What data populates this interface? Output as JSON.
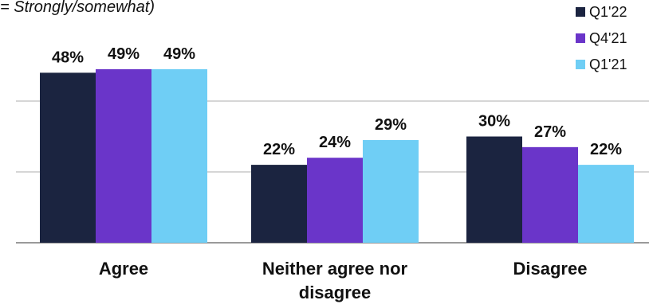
{
  "note": "= Strongly/somewhat)",
  "chart_data": {
    "type": "bar",
    "categories": [
      "Agree",
      "Neither agree nor disagree",
      "Disagree"
    ],
    "category_lines": [
      [
        "Agree"
      ],
      [
        "Neither agree nor",
        "disagree"
      ],
      [
        "Disagree"
      ]
    ],
    "series": [
      {
        "name": "Q1'22",
        "values": [
          48,
          22,
          30
        ],
        "value_labels": [
          "48%",
          "22%",
          "30%"
        ],
        "color": "#1b2440"
      },
      {
        "name": "Q4'21",
        "values": [
          49,
          24,
          27
        ],
        "value_labels": [
          "49%",
          "24%",
          "27%"
        ],
        "color": "#6a35c9"
      },
      {
        "name": "Q1'21",
        "values": [
          49,
          29,
          22
        ],
        "value_labels": [
          "49%",
          "29%",
          "22%"
        ],
        "color": "#6fcef5"
      }
    ],
    "ylim": [
      0,
      60
    ],
    "gridlines": [
      20,
      40
    ],
    "legend": "top-right",
    "colors": {
      "grid": "#c8c8c8",
      "axis": "#9a9a9a",
      "text": "#111111"
    }
  }
}
